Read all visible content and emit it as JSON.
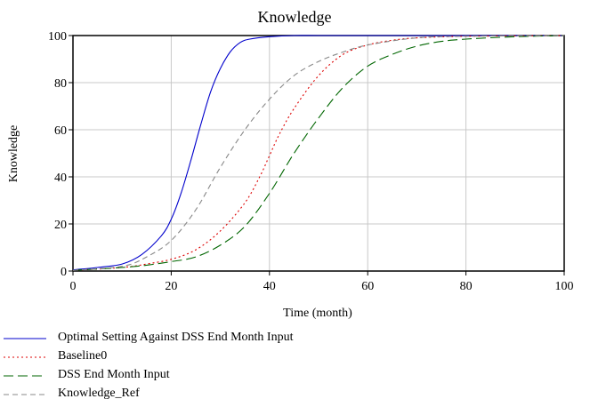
{
  "chart_data": {
    "type": "line",
    "title": "Knowledge",
    "xlabel": "Time (month)",
    "ylabel": "Knowledge",
    "xlim": [
      0,
      100
    ],
    "ylim": [
      0,
      100
    ],
    "xticks": [
      0,
      20,
      40,
      60,
      80,
      100
    ],
    "yticks": [
      0,
      20,
      40,
      60,
      80,
      100
    ],
    "grid": true,
    "legend_position": "bottom",
    "series": [
      {
        "name": "Optimal Setting Against DSS End Month Input",
        "color": "#0000cc",
        "style": "solid",
        "x": [
          0,
          5,
          10,
          14,
          18,
          20,
          22,
          24,
          26,
          28,
          30,
          32,
          34,
          36,
          40,
          45,
          50,
          60,
          80,
          100
        ],
        "y": [
          0.5,
          1.5,
          3,
          7,
          15,
          22,
          33,
          47,
          62,
          76,
          86,
          93,
          97,
          98.5,
          99.5,
          100,
          100,
          100,
          100,
          100
        ]
      },
      {
        "name": "Baseline0",
        "color": "#dd0000",
        "style": "dotted",
        "x": [
          0,
          10,
          15,
          20,
          25,
          30,
          35,
          38,
          40,
          42,
          45,
          50,
          55,
          60,
          65,
          70,
          80,
          100
        ],
        "y": [
          0.3,
          1.5,
          3,
          5,
          9,
          17,
          29,
          40,
          49,
          58,
          69,
          83,
          92,
          96,
          98,
          99,
          99.7,
          100
        ]
      },
      {
        "name": "DSS End Month Input",
        "color": "#006600",
        "style": "dashed",
        "x": [
          0,
          10,
          15,
          20,
          25,
          30,
          35,
          40,
          45,
          50,
          55,
          60,
          65,
          70,
          75,
          80,
          90,
          100
        ],
        "y": [
          0.3,
          1.5,
          2.5,
          4,
          6,
          11,
          19,
          33,
          50,
          65,
          78,
          87,
          92,
          95.5,
          97.5,
          98.5,
          99.5,
          100
        ]
      },
      {
        "name": "Knowledge_Ref",
        "color": "#888888",
        "style": "dashed-short",
        "x": [
          0,
          10,
          15,
          20,
          25,
          30,
          35,
          40,
          45,
          50,
          55,
          60,
          70,
          80,
          100
        ],
        "y": [
          0.3,
          2,
          6,
          13,
          26,
          44,
          60,
          73,
          83,
          89,
          93,
          96,
          99,
          99.7,
          100
        ]
      }
    ]
  }
}
